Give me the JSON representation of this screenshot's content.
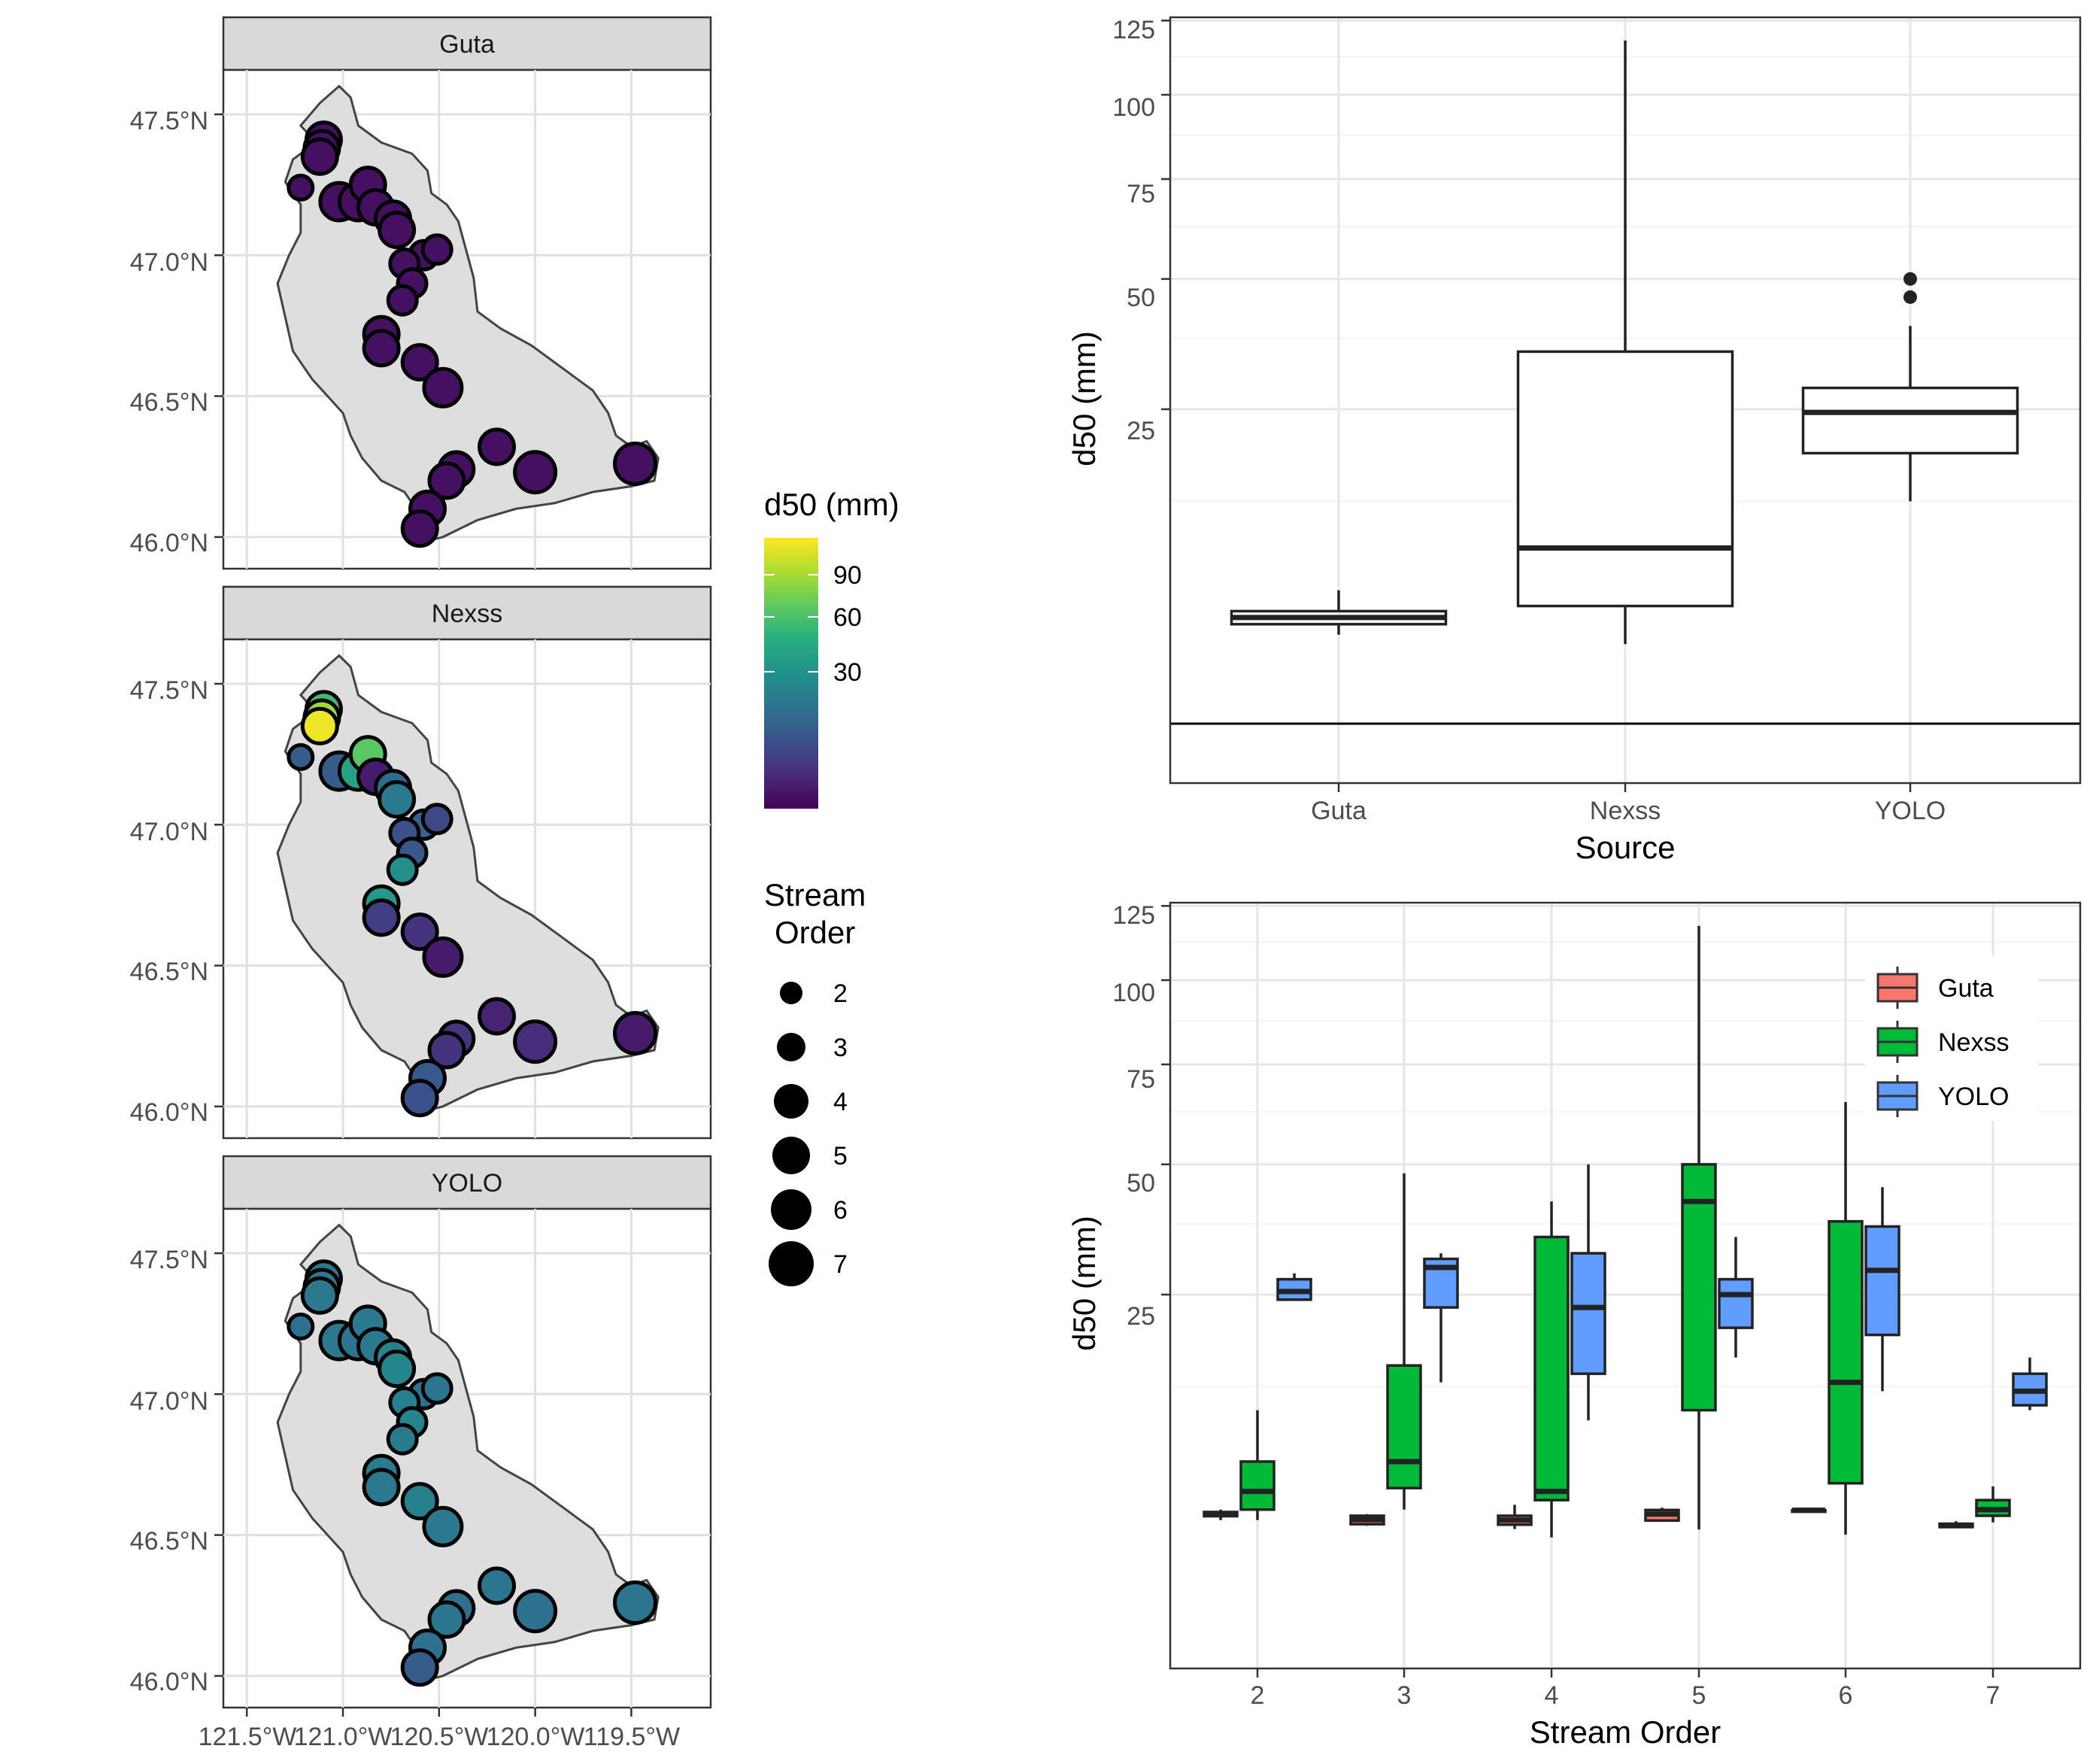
{
  "map_panels": [
    {
      "strip": "Guta",
      "lat_ticks": [
        "47.5°N",
        "47.0°N",
        "46.5°N",
        "46.0°N"
      ],
      "points_d50": [
        2,
        2,
        2,
        2,
        2,
        2,
        2,
        2,
        2,
        2,
        2,
        2,
        2,
        2,
        2,
        2,
        2,
        2,
        2,
        2,
        2,
        2,
        2,
        2,
        2,
        2
      ]
    },
    {
      "strip": "Nexss",
      "lat_ticks": [
        "47.5°N",
        "47.0°N",
        "46.5°N",
        "46.0°N"
      ],
      "points_d50": [
        60,
        90,
        115,
        15,
        15,
        45,
        70,
        3,
        20,
        25,
        18,
        10,
        12,
        14,
        35,
        40,
        8,
        6,
        3,
        4,
        5,
        3,
        6,
        6,
        14,
        12
      ]
    },
    {
      "strip": "YOLO",
      "lat_ticks": [
        "47.5°N",
        "47.0°N",
        "46.5°N",
        "46.0°N"
      ],
      "points_d50": [
        25,
        25,
        25,
        22,
        25,
        24,
        25,
        25,
        28,
        30,
        22,
        24,
        28,
        30,
        26,
        26,
        25,
        28,
        25,
        24,
        22,
        24,
        22,
        24,
        22,
        15
      ]
    }
  ],
  "map_lon_ticks": [
    "121.5°W",
    "121.0°W",
    "120.5°W",
    "120.0°W",
    "119.5°W"
  ],
  "map_points": [
    {
      "lon": -121.1,
      "lat": 47.41,
      "order": 4
    },
    {
      "lon": -121.11,
      "lat": 47.38,
      "order": 4
    },
    {
      "lon": -121.12,
      "lat": 47.35,
      "order": 4
    },
    {
      "lon": -121.22,
      "lat": 47.24,
      "order": 2
    },
    {
      "lon": -121.02,
      "lat": 47.19,
      "order": 5
    },
    {
      "lon": -120.92,
      "lat": 47.19,
      "order": 5
    },
    {
      "lon": -120.87,
      "lat": 47.25,
      "order": 4
    },
    {
      "lon": -120.83,
      "lat": 47.17,
      "order": 4
    },
    {
      "lon": -120.74,
      "lat": 47.13,
      "order": 4
    },
    {
      "lon": -120.72,
      "lat": 47.09,
      "order": 4
    },
    {
      "lon": -120.58,
      "lat": 47.0,
      "order": 3
    },
    {
      "lon": -120.51,
      "lat": 47.02,
      "order": 3
    },
    {
      "lon": -120.68,
      "lat": 46.97,
      "order": 3
    },
    {
      "lon": -120.64,
      "lat": 46.9,
      "order": 3
    },
    {
      "lon": -120.69,
      "lat": 46.84,
      "order": 3
    },
    {
      "lon": -120.8,
      "lat": 46.72,
      "order": 4
    },
    {
      "lon": -120.8,
      "lat": 46.67,
      "order": 4
    },
    {
      "lon": -120.6,
      "lat": 46.62,
      "order": 4
    },
    {
      "lon": -120.48,
      "lat": 46.53,
      "order": 5
    },
    {
      "lon": -120.2,
      "lat": 46.32,
      "order": 4
    },
    {
      "lon": -120.0,
      "lat": 46.23,
      "order": 6
    },
    {
      "lon": -119.48,
      "lat": 46.26,
      "order": 6
    },
    {
      "lon": -120.41,
      "lat": 46.24,
      "order": 4
    },
    {
      "lon": -120.46,
      "lat": 46.2,
      "order": 4
    },
    {
      "lon": -120.56,
      "lat": 46.1,
      "order": 4
    },
    {
      "lon": -120.6,
      "lat": 46.03,
      "order": 4
    }
  ],
  "color_legend": {
    "title": "d50 (mm)",
    "ticks": [
      "90",
      "60",
      "30"
    ],
    "colors": [
      "#440154",
      "#472d7b",
      "#3b528b",
      "#2c728e",
      "#21918c",
      "#28ae80",
      "#5ec962",
      "#addc30",
      "#fde725"
    ]
  },
  "size_legend": {
    "title_line1": "Stream",
    "title_line2": "Order",
    "labels": [
      "2",
      "3",
      "4",
      "5",
      "6",
      "7"
    ]
  },
  "chart_data": [
    {
      "type": "box",
      "xlabel": "Source",
      "ylabel": "d50 (mm)",
      "y_ticks": [
        "125",
        "100",
        "75",
        "50",
        "25"
      ],
      "categories": [
        "Guta",
        "Nexss",
        "YOLO"
      ],
      "boxes": [
        {
          "category": "Guta",
          "whisker_low": 2.0,
          "q1": 2.5,
          "median": 2.85,
          "q3": 3.2,
          "whisker_high": 4.5,
          "outliers": []
        },
        {
          "category": "Nexss",
          "whisker_low": 1.6,
          "q1": 3.5,
          "median": 7.8,
          "q3": 35.0,
          "whisker_high": 118.0,
          "outliers": []
        },
        {
          "category": "YOLO",
          "whisker_low": 12.5,
          "q1": 18.5,
          "median": 24.5,
          "q3": 28.5,
          "whisker_high": 40.0,
          "outliers": [
            46.0,
            50.0
          ]
        }
      ]
    },
    {
      "type": "box",
      "xlabel": "Stream Order",
      "ylabel": "d50 (mm)",
      "y_ticks": [
        "125",
        "100",
        "75",
        "50",
        "25"
      ],
      "categories": [
        "2",
        "3",
        "4",
        "5",
        "6",
        "7"
      ],
      "series": [
        {
          "name": "Guta",
          "color": "#F8766D",
          "boxes": [
            {
              "whisker_low": 2.0,
              "q1": 2.18,
              "median": 2.3,
              "q3": 2.38,
              "whisker_high": 2.5
            },
            {
              "whisker_low": 1.75,
              "q1": 1.82,
              "median": 2.02,
              "q3": 2.2,
              "whisker_high": 2.28
            },
            {
              "whisker_low": 1.62,
              "q1": 1.8,
              "median": 2.0,
              "q3": 2.2,
              "whisker_high": 2.75
            },
            {
              "whisker_low": 1.95,
              "q1": 1.98,
              "median": 2.28,
              "q3": 2.48,
              "whisker_high": 2.6
            },
            {
              "whisker_low": 2.47,
              "q1": 2.47,
              "median": 2.47,
              "q3": 2.47,
              "whisker_high": 2.47
            },
            {
              "whisker_low": 1.7,
              "q1": 1.7,
              "median": 1.76,
              "q3": 1.84,
              "whisker_high": 1.95
            }
          ]
        },
        {
          "name": "Nexss",
          "color": "#00BA38",
          "boxes": [
            {
              "whisker_low": 2.0,
              "q1": 2.5,
              "median": 3.5,
              "q3": 5.5,
              "whisker_high": 10.0
            },
            {
              "whisker_low": 2.5,
              "q1": 3.7,
              "median": 5.5,
              "q3": 15.0,
              "whisker_high": 48.0
            },
            {
              "whisker_low": 1.3,
              "q1": 3.0,
              "median": 3.5,
              "q3": 35.0,
              "whisker_high": 42.0
            },
            {
              "whisker_low": 1.6,
              "q1": 10.0,
              "median": 42.0,
              "q3": 50.0,
              "whisker_high": 118.0
            },
            {
              "whisker_low": 1.4,
              "q1": 4.0,
              "median": 13.0,
              "q3": 38.0,
              "whisker_high": 65.0
            },
            {
              "whisker_low": 1.9,
              "q1": 2.2,
              "median": 2.5,
              "q3": 3.0,
              "whisker_high": 3.8
            }
          ]
        },
        {
          "name": "YOLO",
          "color": "#619CFF",
          "boxes": [
            {
              "whisker_low": 24.0,
              "q1": 24.2,
              "median": 25.5,
              "q3": 27.5,
              "whisker_high": 28.5
            },
            {
              "whisker_low": 13.0,
              "q1": 23.0,
              "median": 29.5,
              "q3": 31.0,
              "whisker_high": 32.0
            },
            {
              "whisker_low": 9.0,
              "q1": 14.0,
              "median": 23.0,
              "q3": 32.0,
              "whisker_high": 50.0
            },
            {
              "whisker_low": 16.0,
              "q1": 20.0,
              "median": 25.0,
              "q3": 27.5,
              "whisker_high": 35.0
            },
            {
              "whisker_low": 12.0,
              "q1": 19.0,
              "median": 29.0,
              "q3": 37.0,
              "whisker_high": 45.0
            },
            {
              "whisker_low": 10.0,
              "q1": 10.5,
              "median": 12.0,
              "q3": 14.0,
              "whisker_high": 16.0
            }
          ]
        }
      ]
    }
  ]
}
